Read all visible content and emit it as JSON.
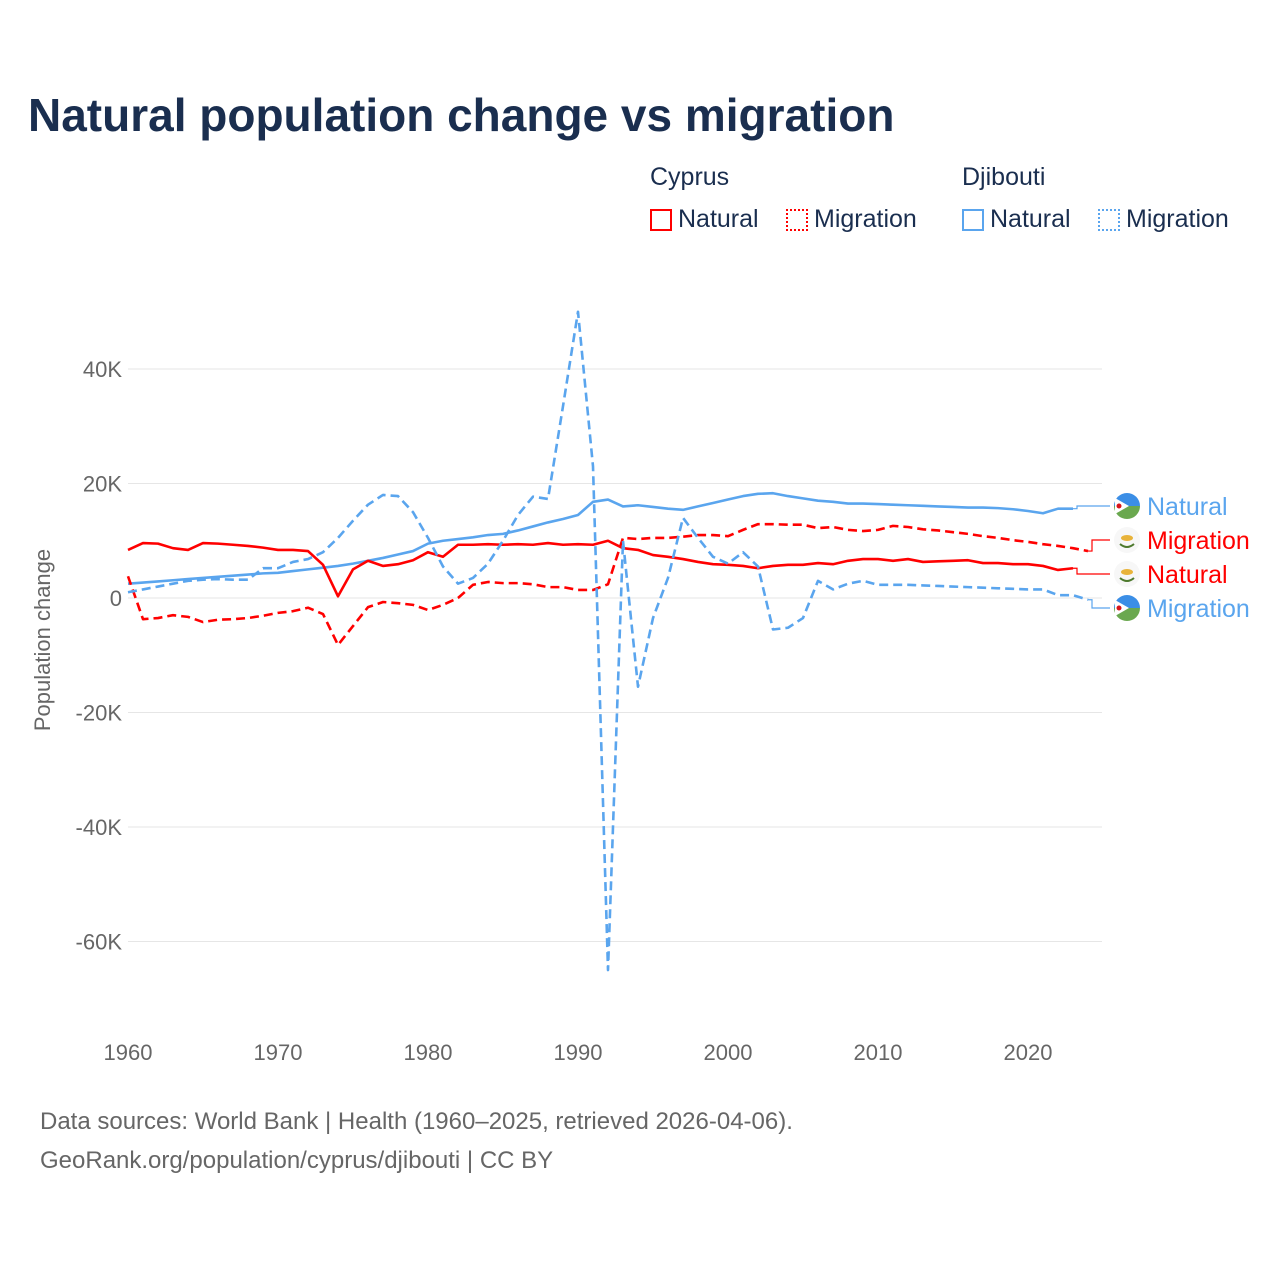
{
  "title": "Natural population change vs migration",
  "legend": {
    "groups": [
      {
        "name": "Cyprus",
        "color": "#ff0000",
        "items": [
          "Natural",
          "Migration"
        ]
      },
      {
        "name": "Djibouti",
        "color": "#5aa5ee",
        "items": [
          "Natural",
          "Migration"
        ]
      }
    ]
  },
  "footer": {
    "line1": "Data sources: World Bank | Health (1960–2025, retrieved 2026-04-06).",
    "line2": "GeoRank.org/population/cyprus/djibouti | CC BY"
  },
  "chart_data": {
    "type": "line",
    "title": "Natural population change vs migration",
    "xlabel": "",
    "ylabel": "Population change",
    "xlim": [
      1960,
      2025
    ],
    "ylim": [
      -70000,
      55000
    ],
    "yticks": [
      -60000,
      -40000,
      -20000,
      0,
      20000,
      40000
    ],
    "ytick_labels": [
      "-60K",
      "-40K",
      "-20K",
      "0",
      "20K",
      "40K"
    ],
    "xticks": [
      1960,
      1970,
      1980,
      1990,
      2000,
      2010,
      2020
    ],
    "xtick_labels": [
      "1960",
      "1970",
      "1980",
      "1990",
      "2000",
      "2010",
      "2020"
    ],
    "grid": true,
    "start_year": 1960,
    "series": [
      {
        "name": "Cyprus Natural",
        "end_label": "Natural",
        "color": "#ff0000",
        "dash": false,
        "values": [
          8.4,
          9.6,
          9.5,
          8.7,
          8.4,
          9.6,
          9.5,
          9.3,
          9.1,
          8.8,
          8.4,
          8.4,
          8.2,
          5.8,
          0.3,
          5.0,
          6.5,
          5.6,
          5.9,
          6.6,
          8.0,
          7.2,
          9.3,
          9.3,
          9.4,
          9.3,
          9.4,
          9.3,
          9.6,
          9.3,
          9.4,
          9.3,
          10.0,
          8.7,
          8.4,
          7.5,
          7.2,
          6.8,
          6.3,
          5.9,
          5.8,
          5.6,
          5.2,
          5.6,
          5.8,
          5.8,
          6.1,
          5.9,
          6.5,
          6.8,
          6.8,
          6.5,
          6.8,
          6.3,
          6.4,
          6.5,
          6.6,
          6.1,
          6.1,
          5.9,
          5.9,
          5.6,
          4.9,
          5.2
        ]
      },
      {
        "name": "Cyprus Migration",
        "end_label": "Migration",
        "color": "#ff0000",
        "dash": true,
        "values": [
          3.8,
          -3.7,
          -3.5,
          -3.0,
          -3.3,
          -4.2,
          -3.8,
          -3.7,
          -3.5,
          -3.1,
          -2.6,
          -2.3,
          -1.7,
          -2.8,
          -8.2,
          -4.9,
          -1.6,
          -0.7,
          -0.9,
          -1.2,
          -2.1,
          -1.2,
          0.0,
          2.3,
          2.8,
          2.6,
          2.6,
          2.4,
          1.9,
          1.9,
          1.4,
          1.4,
          2.4,
          10.5,
          10.3,
          10.5,
          10.5,
          10.7,
          11.0,
          11.0,
          10.8,
          11.9,
          12.9,
          12.9,
          12.8,
          12.8,
          12.2,
          12.4,
          11.9,
          11.7,
          11.9,
          12.6,
          12.4,
          12.0,
          11.8,
          11.5,
          11.2,
          10.8,
          10.5,
          10.1,
          9.8,
          9.4,
          9.1,
          8.7,
          8.2
        ]
      },
      {
        "name": "Djibouti Natural",
        "end_label": "Natural",
        "color": "#5aa5ee",
        "dash": false,
        "values": [
          2.5,
          2.7,
          2.9,
          3.1,
          3.3,
          3.5,
          3.7,
          3.9,
          4.1,
          4.3,
          4.4,
          4.7,
          5.0,
          5.3,
          5.6,
          6.0,
          6.5,
          7.0,
          7.6,
          8.2,
          9.5,
          10.0,
          10.3,
          10.6,
          11.0,
          11.2,
          11.8,
          12.5,
          13.2,
          13.8,
          14.5,
          16.8,
          17.2,
          16.0,
          16.2,
          15.9,
          15.6,
          15.4,
          16.0,
          16.6,
          17.2,
          17.8,
          18.2,
          18.3,
          17.8,
          17.4,
          17.0,
          16.8,
          16.5,
          16.5,
          16.4,
          16.3,
          16.2,
          16.1,
          16.0,
          15.9,
          15.8,
          15.8,
          15.7,
          15.5,
          15.2,
          14.8,
          15.6,
          15.6
        ]
      },
      {
        "name": "Djibouti Migration",
        "end_label": "Migration",
        "color": "#5aa5ee",
        "dash": true,
        "values": [
          1.0,
          1.5,
          2.0,
          2.5,
          3.0,
          3.2,
          3.3,
          3.2,
          3.2,
          5.2,
          5.2,
          6.3,
          6.8,
          8.0,
          10.5,
          13.5,
          16.3,
          18.0,
          17.8,
          15.0,
          10.5,
          5.5,
          2.5,
          3.5,
          6.0,
          10.0,
          14.5,
          17.7,
          17.3,
          33.5,
          50.0,
          23.0,
          -65.0,
          10.0,
          -15.5,
          -3.5,
          3.5,
          14.0,
          10.5,
          7.2,
          6.0,
          8.0,
          5.5,
          -5.5,
          -5.2,
          -3.5,
          3.0,
          1.5,
          2.5,
          3.0,
          2.3,
          2.3,
          2.3,
          2.2,
          2.1,
          2.0,
          1.9,
          1.8,
          1.7,
          1.6,
          1.5,
          1.5,
          0.5,
          0.5,
          -0.3
        ]
      }
    ],
    "value_unit": "thousands"
  }
}
